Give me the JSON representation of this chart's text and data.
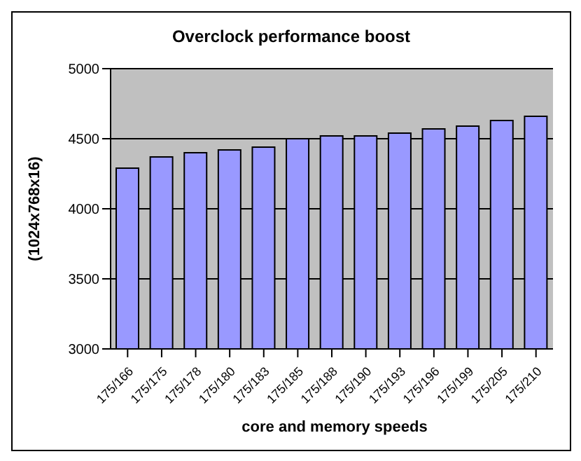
{
  "chart_data": {
    "type": "bar",
    "title": "Overclock performance boost",
    "xlabel": "core and memory speeds",
    "ylabel": "(1024x768x16)",
    "categories": [
      "175/166",
      "175/175",
      "175/178",
      "175/180",
      "175/183",
      "175/185",
      "175/188",
      "175/190",
      "175/193",
      "175/196",
      "175/199",
      "175/205",
      "175/210"
    ],
    "values": [
      4290,
      4370,
      4400,
      4420,
      4440,
      4500,
      4520,
      4520,
      4540,
      4570,
      4590,
      4630,
      4660
    ],
    "color": "#9999ff",
    "ylim": [
      3000,
      5000
    ],
    "yticks": [
      3000,
      3500,
      4000,
      4500,
      5000
    ],
    "grid": "y"
  }
}
